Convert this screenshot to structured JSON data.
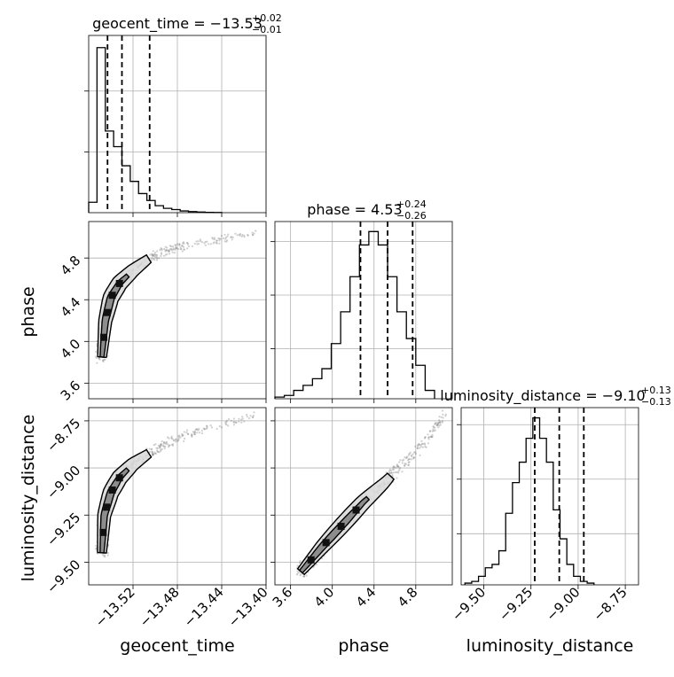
{
  "chart_data": [
    {
      "type": "histogram",
      "panel": "geocent_time",
      "title_main": "geocent_time = −13.53",
      "title_sup": "+0.02",
      "title_sub": "−0.01",
      "bin_width": 0.0075,
      "bin_start": -13.56,
      "density": [
        0.06,
        0.95,
        0.47,
        0.38,
        0.27,
        0.18,
        0.11,
        0.07,
        0.04,
        0.025,
        0.018,
        0.01,
        0.006,
        0.004,
        0.002,
        0.001
      ],
      "quantiles": [
        -13.543,
        -13.53,
        -13.505
      ],
      "xlim": [
        -13.56,
        -13.4
      ],
      "ylim": [
        0,
        1.02
      ],
      "ytick_density": [
        0.35,
        0.7
      ]
    },
    {
      "type": "histogram",
      "panel": "phase",
      "title_main": "phase = 4.53",
      "title_sup": "+0.24",
      "title_sub": "−0.26",
      "bin_width": 0.09,
      "bin_start": 3.45,
      "density": [
        0.01,
        0.02,
        0.05,
        0.08,
        0.12,
        0.18,
        0.33,
        0.52,
        0.73,
        0.92,
        1.0,
        0.92,
        0.73,
        0.52,
        0.36,
        0.2,
        0.05
      ],
      "quantiles": [
        4.27,
        4.53,
        4.77
      ],
      "xlim": [
        3.45,
        5.15
      ],
      "ylim": [
        0,
        1.06
      ],
      "ytick_density": [
        0.3,
        0.62,
        0.94
      ]
    },
    {
      "type": "histogram",
      "panel": "luminosity_distance",
      "title_main": "luminosity_distance = −9.10",
      "title_sup": "+0.13",
      "title_sub": "−0.13",
      "bin_width": 0.036,
      "bin_start": -9.6,
      "density": [
        0.01,
        0.02,
        0.05,
        0.1,
        0.12,
        0.2,
        0.42,
        0.6,
        0.72,
        0.86,
        0.98,
        0.86,
        0.72,
        0.44,
        0.27,
        0.12,
        0.05,
        0.02,
        0.01
      ],
      "quantiles": [
        -9.23,
        -9.1,
        -8.97
      ],
      "xlim": [
        -9.62,
        -8.68
      ],
      "ylim": [
        0,
        1.04
      ],
      "ytick_density": [
        0.3,
        0.62,
        0.94
      ]
    },
    {
      "type": "scatter",
      "panel": "phase vs geocent_time",
      "x_param": "geocent_time",
      "y_param": "phase",
      "xlim": [
        -13.56,
        -13.4
      ],
      "ylim": [
        3.45,
        5.15
      ],
      "curve": [
        [
          -13.548,
          3.85
        ],
        [
          -13.545,
          4.2
        ],
        [
          -13.54,
          4.42
        ],
        [
          -13.532,
          4.56
        ],
        [
          -13.52,
          4.68
        ],
        [
          -13.505,
          4.8
        ],
        [
          -13.49,
          4.87
        ],
        [
          -13.47,
          4.92
        ],
        [
          -13.44,
          4.98
        ],
        [
          -13.41,
          5.05
        ]
      ]
    },
    {
      "type": "scatter",
      "panel": "luminosity_distance vs geocent_time",
      "x_param": "geocent_time",
      "y_param": "luminosity_distance",
      "xlim": [
        -13.56,
        -13.4
      ],
      "ylim": [
        -9.62,
        -8.68
      ],
      "curve": [
        [
          -13.548,
          -9.45
        ],
        [
          -13.546,
          -9.25
        ],
        [
          -13.54,
          -9.13
        ],
        [
          -13.532,
          -9.05
        ],
        [
          -13.52,
          -8.98
        ],
        [
          -13.505,
          -8.92
        ],
        [
          -13.49,
          -8.87
        ],
        [
          -13.47,
          -8.82
        ],
        [
          -13.44,
          -8.77
        ],
        [
          -13.41,
          -8.72
        ]
      ]
    },
    {
      "type": "scatter",
      "panel": "luminosity_distance vs phase",
      "x_param": "phase",
      "y_param": "luminosity_distance",
      "xlim": [
        3.45,
        5.15
      ],
      "ylim": [
        -9.62,
        -8.68
      ],
      "curve": [
        [
          3.7,
          -9.55
        ],
        [
          3.9,
          -9.42
        ],
        [
          4.1,
          -9.3
        ],
        [
          4.3,
          -9.18
        ],
        [
          4.5,
          -9.08
        ],
        [
          4.65,
          -8.99
        ],
        [
          4.8,
          -8.92
        ],
        [
          4.95,
          -8.82
        ],
        [
          5.08,
          -8.7
        ]
      ]
    }
  ],
  "axes": {
    "geocent_time": {
      "label": "geocent_time",
      "ticks": [
        -13.52,
        -13.48,
        -13.44,
        -13.4
      ],
      "tick_labels": [
        "−13.52",
        "−13.48",
        "−13.44",
        "−13.40"
      ]
    },
    "phase": {
      "label": "phase",
      "ticks": [
        3.6,
        4.0,
        4.4,
        4.8
      ],
      "tick_labels": [
        "3.6",
        "4.0",
        "4.4",
        "4.8"
      ]
    },
    "luminosity_distance": {
      "label": "luminosity_distance",
      "ticks": [
        -9.5,
        -9.25,
        -9.0,
        -8.75
      ],
      "tick_labels": [
        "−9.50",
        "−9.25",
        "−9.00",
        "−8.75"
      ]
    }
  },
  "style": {
    "line_color": "#000000",
    "grid_color": "#b0b0b0",
    "scatter_color": "#777777",
    "contour_fill": "#d9d9d9",
    "contour_fill_inner": "#7f7f7f"
  }
}
